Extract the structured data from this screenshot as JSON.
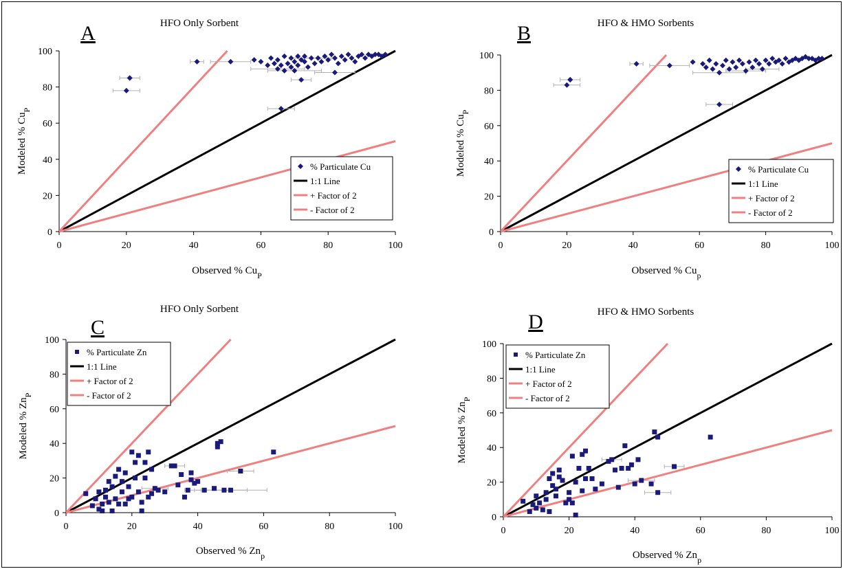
{
  "chart_data": [
    {
      "type": "scatter",
      "panel_letter": "A",
      "title": "HFO Only Sorbent",
      "xlabel": "Observed % Cu",
      "xlabel_sub": "P",
      "ylabel": "Modeled % Cu",
      "ylabel_sub": "P",
      "xlim": [
        0,
        100
      ],
      "ylim": [
        0,
        100
      ],
      "xticks": [
        "0",
        "20",
        "40",
        "60",
        "80",
        "100"
      ],
      "yticks": [
        "0",
        "20",
        "40",
        "60",
        "80",
        "100"
      ],
      "legend_position": "lower-right",
      "marker": "diamond",
      "legend": [
        "% Particulate Cu",
        "1:1 Line",
        "+ Factor of 2",
        "- Factor of 2"
      ],
      "points": [
        [
          21,
          85
        ],
        [
          21,
          85
        ],
        [
          20,
          78
        ],
        [
          41,
          94
        ],
        [
          51,
          94
        ],
        [
          58,
          95
        ],
        [
          60,
          94
        ],
        [
          62,
          92
        ],
        [
          63,
          96
        ],
        [
          64,
          93
        ],
        [
          65,
          90
        ],
        [
          65,
          95
        ],
        [
          66,
          68
        ],
        [
          66,
          92
        ],
        [
          67,
          89
        ],
        [
          67,
          97
        ],
        [
          68,
          93
        ],
        [
          69,
          91
        ],
        [
          69,
          96
        ],
        [
          70,
          94
        ],
        [
          70,
          89
        ],
        [
          71,
          97
        ],
        [
          71,
          92
        ],
        [
          72,
          95
        ],
        [
          72,
          84
        ],
        [
          73,
          94
        ],
        [
          73,
          97
        ],
        [
          74,
          91
        ],
        [
          75,
          96
        ],
        [
          76,
          93
        ],
        [
          77,
          96
        ],
        [
          78,
          94
        ],
        [
          79,
          97
        ],
        [
          80,
          95
        ],
        [
          81,
          98
        ],
        [
          82,
          96
        ],
        [
          82,
          88
        ],
        [
          83,
          93
        ],
        [
          84,
          97
        ],
        [
          85,
          95
        ],
        [
          86,
          98
        ],
        [
          87,
          96
        ],
        [
          88,
          94
        ],
        [
          89,
          97
        ],
        [
          90,
          98
        ],
        [
          91,
          96
        ],
        [
          92,
          98
        ],
        [
          93,
          97
        ],
        [
          94,
          98
        ],
        [
          95,
          98
        ],
        [
          96,
          97
        ],
        [
          97,
          98
        ]
      ],
      "xerr": [
        [
          21,
          85,
          3
        ],
        [
          20,
          78,
          4
        ],
        [
          41,
          94,
          2
        ],
        [
          51,
          94,
          6
        ],
        [
          65,
          90,
          8
        ],
        [
          66,
          68,
          4
        ],
        [
          70,
          89,
          8
        ],
        [
          72,
          84,
          3
        ],
        [
          82,
          88,
          6
        ],
        [
          75,
          96,
          6
        ]
      ],
      "series": [
        {
          "name": "% Particulate Cu",
          "color": "#1a1a7a"
        },
        {
          "name": "1:1 Line",
          "color": "#000000",
          "line": [
            [
              0,
              0
            ],
            [
              100,
              100
            ]
          ]
        },
        {
          "name": "+ Factor of 2",
          "color": "#f08080",
          "line": [
            [
              0,
              0
            ],
            [
              50,
              100
            ]
          ]
        },
        {
          "name": "- Factor of 2",
          "color": "#f08080",
          "line": [
            [
              0,
              0
            ],
            [
              100,
              50
            ]
          ]
        }
      ]
    },
    {
      "type": "scatter",
      "panel_letter": "B",
      "title": "HFO & HMO Sorbents",
      "xlabel": "Observed % Cu",
      "xlabel_sub": "p",
      "ylabel": "Modeled % Cu",
      "ylabel_sub": "P",
      "xlim": [
        0,
        100
      ],
      "ylim": [
        0,
        100
      ],
      "xticks": [
        "0",
        "20",
        "40",
        "60",
        "80",
        "100"
      ],
      "yticks": [
        "0",
        "20",
        "40",
        "60",
        "80",
        "100"
      ],
      "legend_position": "lower-right",
      "marker": "diamond",
      "legend": [
        "% Particulate Cu",
        "1:1 Line",
        "+ Factor of 2",
        "- Factor of 2"
      ],
      "points": [
        [
          21,
          86
        ],
        [
          21,
          86
        ],
        [
          20,
          83
        ],
        [
          41,
          95
        ],
        [
          51,
          94
        ],
        [
          58,
          96
        ],
        [
          61,
          95
        ],
        [
          62,
          93
        ],
        [
          63,
          97
        ],
        [
          64,
          92
        ],
        [
          65,
          95
        ],
        [
          66,
          90
        ],
        [
          66,
          72
        ],
        [
          67,
          94
        ],
        [
          68,
          97
        ],
        [
          69,
          92
        ],
        [
          70,
          96
        ],
        [
          71,
          93
        ],
        [
          72,
          97
        ],
        [
          73,
          95
        ],
        [
          74,
          91
        ],
        [
          75,
          96
        ],
        [
          76,
          93
        ],
        [
          77,
          97
        ],
        [
          78,
          95
        ],
        [
          79,
          92
        ],
        [
          80,
          97
        ],
        [
          81,
          95
        ],
        [
          82,
          98
        ],
        [
          83,
          96
        ],
        [
          84,
          97
        ],
        [
          85,
          95
        ],
        [
          86,
          98
        ],
        [
          87,
          96
        ],
        [
          88,
          97
        ],
        [
          89,
          98
        ],
        [
          90,
          97
        ],
        [
          91,
          98
        ],
        [
          92,
          99
        ],
        [
          93,
          98
        ],
        [
          94,
          98
        ],
        [
          95,
          97
        ],
        [
          96,
          98
        ],
        [
          97,
          98
        ]
      ],
      "xerr": [
        [
          21,
          86,
          3
        ],
        [
          20,
          83,
          4
        ],
        [
          41,
          95,
          2
        ],
        [
          51,
          94,
          6
        ],
        [
          66,
          90,
          8
        ],
        [
          66,
          72,
          4
        ],
        [
          74,
          91,
          6
        ],
        [
          79,
          92,
          5
        ]
      ],
      "series": [
        {
          "name": "% Particulate Cu",
          "color": "#1a1a7a"
        },
        {
          "name": "1:1 Line",
          "color": "#000000",
          "line": [
            [
              0,
              0
            ],
            [
              100,
              100
            ]
          ]
        },
        {
          "name": "+ Factor of 2",
          "color": "#f08080",
          "line": [
            [
              0,
              0
            ],
            [
              50,
              100
            ]
          ]
        },
        {
          "name": "- Factor of 2",
          "color": "#f08080",
          "line": [
            [
              0,
              0
            ],
            [
              100,
              50
            ]
          ]
        }
      ]
    },
    {
      "type": "scatter",
      "panel_letter": "C",
      "title": "HFO Only Sorbent",
      "xlabel": "Observed % Zn",
      "xlabel_sub": "p",
      "ylabel": "Modeled % Zn",
      "ylabel_sub": "P",
      "xlim": [
        0,
        100
      ],
      "ylim": [
        0,
        100
      ],
      "xticks": [
        "0",
        "20",
        "40",
        "60",
        "80",
        "100"
      ],
      "yticks": [
        "0",
        "20",
        "40",
        "60",
        "80",
        "100"
      ],
      "legend_position": "top-left",
      "marker": "square",
      "legend": [
        "% Particulate Zn",
        "1:1 Line",
        "+ Factor of 2",
        "- Factor of 2"
      ],
      "points": [
        [
          6,
          11
        ],
        [
          8,
          4
        ],
        [
          9,
          8
        ],
        [
          10,
          2
        ],
        [
          10,
          12
        ],
        [
          11,
          5
        ],
        [
          11,
          1
        ],
        [
          12,
          9
        ],
        [
          12,
          13
        ],
        [
          13,
          6
        ],
        [
          13,
          18
        ],
        [
          14,
          15
        ],
        [
          14,
          1
        ],
        [
          15,
          21
        ],
        [
          15,
          8
        ],
        [
          16,
          25
        ],
        [
          16,
          5
        ],
        [
          17,
          18
        ],
        [
          17,
          12
        ],
        [
          18,
          23
        ],
        [
          18,
          5
        ],
        [
          19,
          8
        ],
        [
          19,
          15
        ],
        [
          20,
          35
        ],
        [
          20,
          9
        ],
        [
          21,
          29
        ],
        [
          21,
          20
        ],
        [
          22,
          33
        ],
        [
          22,
          12
        ],
        [
          23,
          6
        ],
        [
          23,
          1
        ],
        [
          24,
          29
        ],
        [
          24,
          20
        ],
        [
          25,
          35
        ],
        [
          25,
          9
        ],
        [
          26,
          25
        ],
        [
          26,
          11
        ],
        [
          27,
          14
        ],
        [
          28,
          13
        ],
        [
          30,
          12
        ],
        [
          32,
          27
        ],
        [
          33,
          27
        ],
        [
          34,
          16
        ],
        [
          35,
          22
        ],
        [
          36,
          9
        ],
        [
          37,
          13
        ],
        [
          38,
          23
        ],
        [
          38,
          19
        ],
        [
          39,
          17
        ],
        [
          40,
          18
        ],
        [
          42,
          13
        ],
        [
          45,
          14
        ],
        [
          46,
          40
        ],
        [
          46,
          38
        ],
        [
          47,
          41
        ],
        [
          48,
          13
        ],
        [
          50,
          13
        ],
        [
          53,
          24
        ],
        [
          63,
          35
        ]
      ],
      "xerr": [
        [
          33,
          27,
          3
        ],
        [
          42,
          13,
          6
        ],
        [
          48,
          13,
          7
        ],
        [
          53,
          24,
          4
        ],
        [
          50,
          13,
          11
        ],
        [
          27,
          14,
          4
        ]
      ],
      "series": [
        {
          "name": "% Particulate Zn",
          "color": "#1a1a7a"
        },
        {
          "name": "1:1 Line",
          "color": "#000000",
          "line": [
            [
              0,
              0
            ],
            [
              100,
              100
            ]
          ]
        },
        {
          "name": "+ Factor of 2",
          "color": "#f08080",
          "line": [
            [
              0,
              0
            ],
            [
              50,
              100
            ]
          ]
        },
        {
          "name": "- Factor of 2",
          "color": "#f08080",
          "line": [
            [
              0,
              0
            ],
            [
              100,
              50
            ]
          ]
        }
      ]
    },
    {
      "type": "scatter",
      "panel_letter": "D",
      "title": "HFO & HMO Sorbents",
      "xlabel": "Observed % Zn",
      "xlabel_sub": "p",
      "ylabel": "Modeled % Zn",
      "ylabel_sub": "P",
      "xlim": [
        0,
        100
      ],
      "ylim": [
        0,
        100
      ],
      "xticks": [
        "0",
        "20",
        "40",
        "60",
        "80",
        "100"
      ],
      "yticks": [
        "0",
        "20",
        "40",
        "60",
        "80",
        "100"
      ],
      "legend_position": "top-left",
      "marker": "square",
      "legend": [
        "% Particulate Zn",
        "1:1 Line",
        "+ Factor of 2",
        "- Factor of 2"
      ],
      "points": [
        [
          6,
          9
        ],
        [
          8,
          3
        ],
        [
          9,
          7
        ],
        [
          10,
          5
        ],
        [
          10,
          12
        ],
        [
          11,
          8
        ],
        [
          12,
          4
        ],
        [
          13,
          14
        ],
        [
          13,
          10
        ],
        [
          14,
          22
        ],
        [
          14,
          3
        ],
        [
          15,
          18
        ],
        [
          15,
          25
        ],
        [
          16,
          16
        ],
        [
          16,
          12
        ],
        [
          17,
          27
        ],
        [
          17,
          23
        ],
        [
          18,
          21
        ],
        [
          19,
          8
        ],
        [
          20,
          14
        ],
        [
          20,
          10
        ],
        [
          21,
          35
        ],
        [
          21,
          8
        ],
        [
          22,
          20
        ],
        [
          22,
          1
        ],
        [
          23,
          28
        ],
        [
          24,
          36
        ],
        [
          24,
          15
        ],
        [
          25,
          38
        ],
        [
          25,
          22
        ],
        [
          26,
          28
        ],
        [
          27,
          22
        ],
        [
          28,
          16
        ],
        [
          30,
          19
        ],
        [
          32,
          32
        ],
        [
          33,
          33
        ],
        [
          34,
          27
        ],
        [
          35,
          17
        ],
        [
          36,
          28
        ],
        [
          37,
          41
        ],
        [
          38,
          28
        ],
        [
          39,
          30
        ],
        [
          40,
          19
        ],
        [
          41,
          33
        ],
        [
          42,
          21
        ],
        [
          45,
          19
        ],
        [
          46,
          49
        ],
        [
          47,
          46
        ],
        [
          47,
          14
        ],
        [
          52,
          29
        ],
        [
          63,
          46
        ]
      ],
      "xerr": [
        [
          42,
          21,
          4
        ],
        [
          47,
          14,
          4
        ],
        [
          52,
          29,
          3
        ],
        [
          33,
          33,
          3
        ]
      ],
      "series": [
        {
          "name": "% Particulate Zn",
          "color": "#1a1a7a"
        },
        {
          "name": "1:1 Line",
          "color": "#000000",
          "line": [
            [
              0,
              0
            ],
            [
              100,
              100
            ]
          ]
        },
        {
          "name": "+ Factor of 2",
          "color": "#f08080",
          "line": [
            [
              0,
              0
            ],
            [
              50,
              100
            ]
          ]
        },
        {
          "name": "- Factor of 2",
          "color": "#f08080",
          "line": [
            [
              0,
              0
            ],
            [
              100,
              50
            ]
          ]
        }
      ]
    }
  ]
}
